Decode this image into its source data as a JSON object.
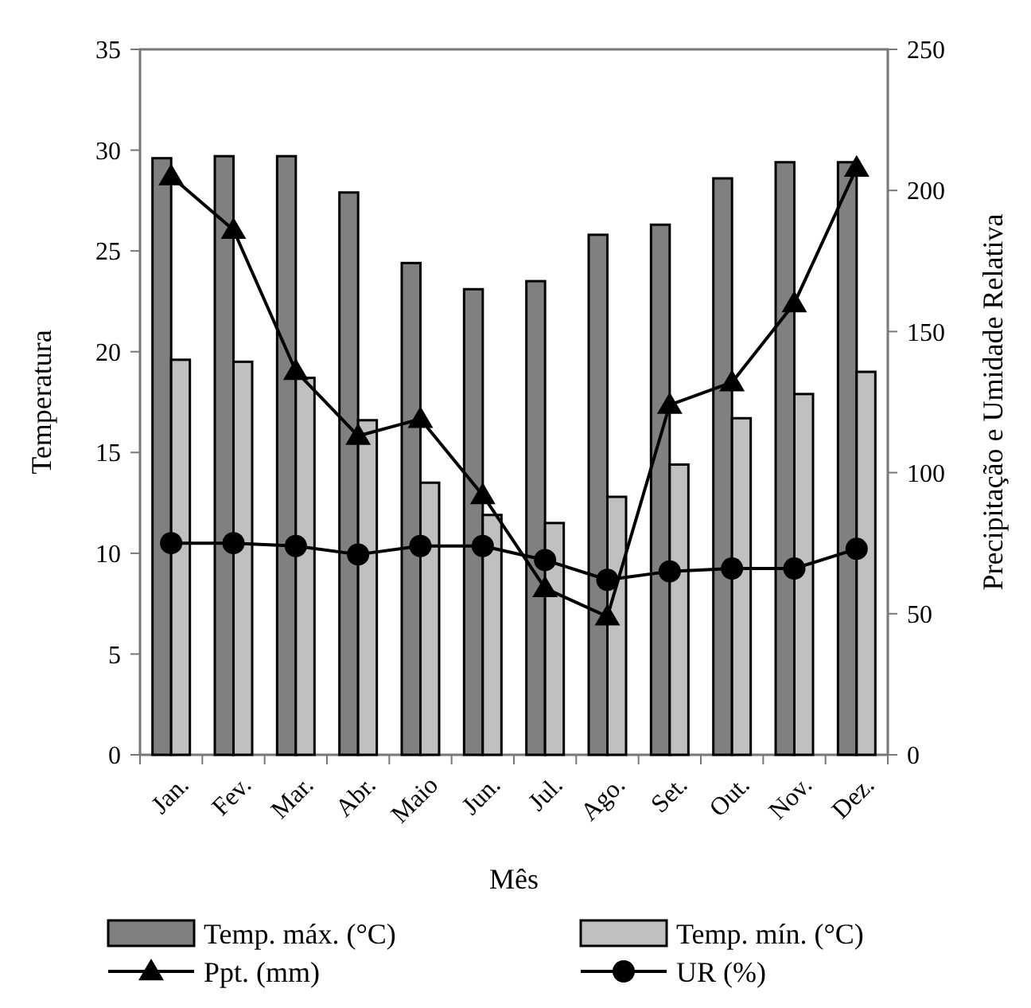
{
  "chart_data": {
    "type": "bar",
    "xlabel": "Mês",
    "ylabel": "Temperatura",
    "y2label": "Precipitação e Umidade Relativa",
    "categories": [
      "Jan.",
      "Fev.",
      "Mar.",
      "Abr.",
      "Maio",
      "Jun.",
      "Jul.",
      "Ago.",
      "Set.",
      "Out.",
      "Nov.",
      "Dez."
    ],
    "series": [
      {
        "name": "Temp. máx. (°C)",
        "color": "#808080",
        "values": [
          29.6,
          29.7,
          29.7,
          27.9,
          24.4,
          23.1,
          23.5,
          25.8,
          26.3,
          28.6,
          29.4,
          29.4
        ]
      },
      {
        "name": "Temp. mín. (°C)",
        "color": "#c0c0c0",
        "values": [
          19.6,
          19.5,
          18.7,
          16.6,
          13.5,
          11.9,
          11.5,
          12.8,
          14.4,
          16.7,
          17.9,
          19.0
        ]
      },
      {
        "name": "Ppt. (mm)",
        "type": "line",
        "axis": "y2",
        "marker": "triangle",
        "color": "#000000",
        "values": [
          205,
          186,
          136,
          113,
          119,
          92,
          59,
          49,
          124,
          132,
          160,
          208
        ]
      },
      {
        "name": "UR (%)",
        "type": "line",
        "axis": "y2",
        "marker": "circle",
        "color": "#000000",
        "values": [
          75,
          75,
          74,
          71,
          74,
          74,
          69,
          62,
          65,
          66,
          66,
          73
        ]
      }
    ],
    "ylim": [
      0,
      35
    ],
    "yticks": [
      0,
      5,
      10,
      15,
      20,
      25,
      30,
      35
    ],
    "y2lim": [
      0,
      250
    ],
    "y2ticks": [
      0,
      50,
      100,
      150,
      200,
      250
    ],
    "grid": false,
    "legend": "bottom"
  }
}
